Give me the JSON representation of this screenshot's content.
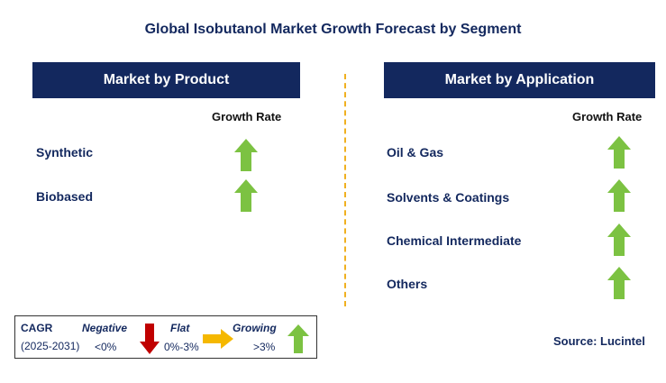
{
  "title": "Global Isobutanol Market Growth Forecast by Segment",
  "left_panel": {
    "header": "Market by Product",
    "column_label": "Growth Rate",
    "rows": [
      {
        "label": "Synthetic",
        "trend": "growing"
      },
      {
        "label": "Biobased",
        "trend": "growing"
      }
    ]
  },
  "right_panel": {
    "header": "Market by Application",
    "column_label": "Growth Rate",
    "rows": [
      {
        "label": "Oil & Gas",
        "trend": "growing"
      },
      {
        "label": "Solvents & Coatings",
        "trend": "growing"
      },
      {
        "label": "Chemical Intermediate",
        "trend": "growing"
      },
      {
        "label": "Others",
        "trend": "growing"
      }
    ]
  },
  "legend": {
    "cagr_label": "CAGR",
    "period": "(2025-2031)",
    "negative_label": "Negative",
    "negative_range": "<0%",
    "flat_label": "Flat",
    "flat_range": "0%-3%",
    "growing_label": "Growing",
    "growing_range": ">3%"
  },
  "source": "Source: Lucintel",
  "colors": {
    "header_bg": "#13285e",
    "growing_arrow": "#7cc242",
    "negative_arrow": "#c00000",
    "flat_arrow": "#f5b800",
    "divider": "#f0b020"
  }
}
